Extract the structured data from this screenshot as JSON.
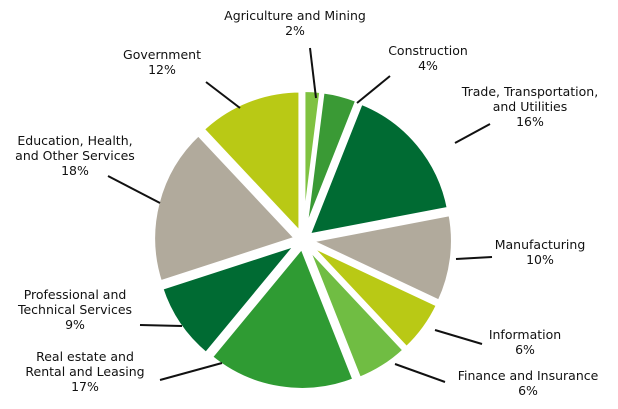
{
  "chart_data": {
    "type": "pie",
    "title": "",
    "start_angle_deg": 0,
    "direction": "clockwise",
    "explode": true,
    "slices": [
      {
        "name": "Agriculture and Mining",
        "value_label": "2%",
        "value": 2,
        "color": "#7fc241"
      },
      {
        "name": "Construction",
        "value_label": "4%",
        "value": 4,
        "color": "#3a9a35"
      },
      {
        "name": "Trade, Transportation, and Utilities",
        "lines": [
          "Trade, Transportation,",
          "and Utilities"
        ],
        "value_label": "16%",
        "value": 16,
        "color": "#006b33"
      },
      {
        "name": "Manufacturing",
        "value_label": "10%",
        "value": 10,
        "color": "#b1aa9c"
      },
      {
        "name": "Information",
        "value_label": "6%",
        "value": 6,
        "color": "#b9c915"
      },
      {
        "name": "Finance and Insurance",
        "value_label": "6%",
        "value": 6,
        "color": "#70bd43"
      },
      {
        "name": "Real estate and Rental and Leasing",
        "lines": [
          "Real estate and",
          "Rental and Leasing"
        ],
        "value_label": "17%",
        "value": 17,
        "color": "#2f9b33"
      },
      {
        "name": "Professional and Technical Services",
        "lines": [
          "Professional and",
          "Technical Services"
        ],
        "value_label": "9%",
        "value": 9,
        "color": "#006b33"
      },
      {
        "name": "Education, Health, and Other Services",
        "lines": [
          "Education, Health,",
          "and Other Services"
        ],
        "value_label": "18%",
        "value": 18,
        "color": "#b1aa9c"
      },
      {
        "name": "Government",
        "value_label": "12%",
        "value": 12,
        "color": "#b9c915"
      }
    ]
  }
}
